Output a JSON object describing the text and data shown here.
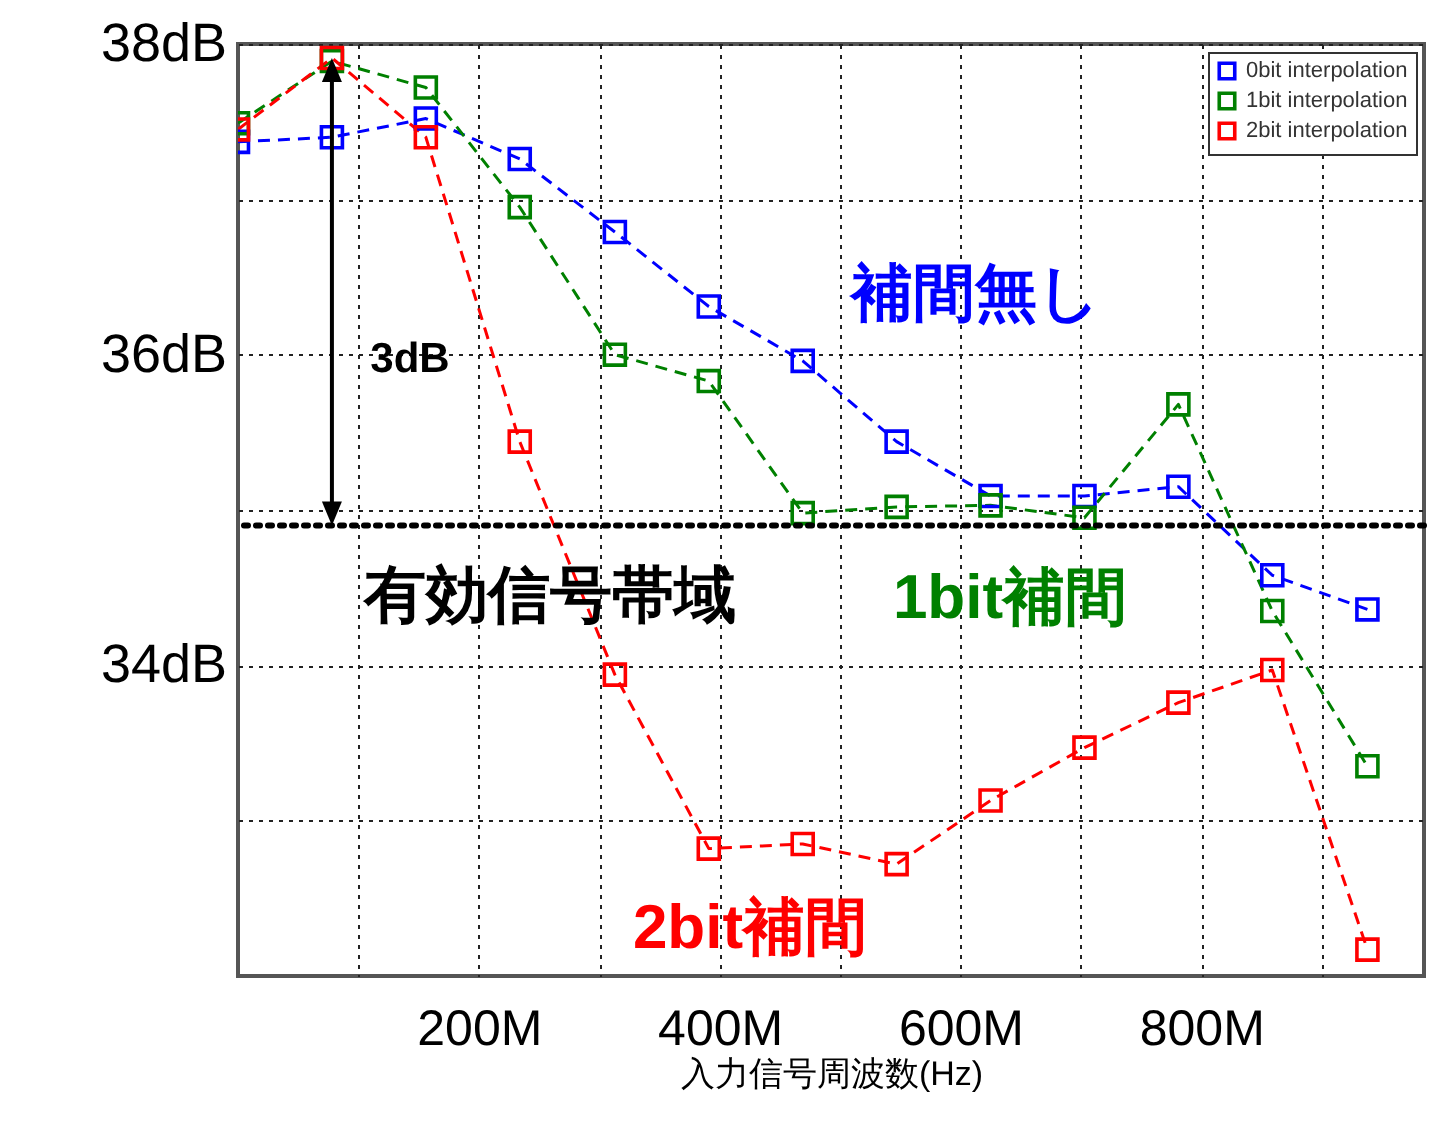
{
  "chart_data": {
    "type": "line",
    "xlabel": "入力信号周波数(Hz)",
    "x": [
      0,
      78,
      156,
      234,
      313,
      391,
      469,
      547,
      625,
      703,
      781,
      859,
      938
    ],
    "series": [
      {
        "name": "0bit interpolation",
        "color": "#0000ff",
        "values": [
          37.37,
          37.4,
          37.52,
          37.26,
          36.79,
          36.31,
          35.96,
          35.44,
          35.09,
          35.09,
          35.15,
          34.58,
          34.36
        ]
      },
      {
        "name": "1bit interpolation",
        "color": "#008000",
        "values": [
          37.49,
          37.89,
          37.72,
          36.95,
          36.0,
          35.83,
          34.98,
          35.02,
          35.03,
          34.95,
          35.68,
          34.35,
          33.35
        ]
      },
      {
        "name": "2bit interpolation",
        "color": "#ff0000",
        "values": [
          37.45,
          37.91,
          37.4,
          35.44,
          33.94,
          32.82,
          32.85,
          32.72,
          33.13,
          33.47,
          33.76,
          33.97,
          32.17
        ]
      }
    ],
    "xlim": [
      0,
      985
    ],
    "ylim": [
      32,
      38
    ],
    "xticks": [
      {
        "value": 100,
        "label": null
      },
      {
        "value": 200,
        "label": "200M"
      },
      {
        "value": 300,
        "label": null
      },
      {
        "value": 400,
        "label": "400M"
      },
      {
        "value": 500,
        "label": null
      },
      {
        "value": 600,
        "label": "600M"
      },
      {
        "value": 700,
        "label": null
      },
      {
        "value": 800,
        "label": "800M"
      },
      {
        "value": 900,
        "label": null
      }
    ],
    "yticks": [
      {
        "value": 33,
        "label": null
      },
      {
        "value": 34,
        "label": "34dB"
      },
      {
        "value": 35,
        "label": null
      },
      {
        "value": 36,
        "label": "36dB"
      },
      {
        "value": 37,
        "label": null
      },
      {
        "value": 38,
        "label": "38dB"
      }
    ],
    "grid": true,
    "legend": "top right",
    "marker": "square",
    "line_style": "dashed",
    "ref_lines": [
      {
        "axis": "y",
        "value": 34.9,
        "label": "有効信号帯域",
        "color": "#000000",
        "line_style": "dotted"
      }
    ],
    "annotations": [
      "3dB",
      "補間無し",
      "1bit補間",
      "2bit補間"
    ]
  }
}
